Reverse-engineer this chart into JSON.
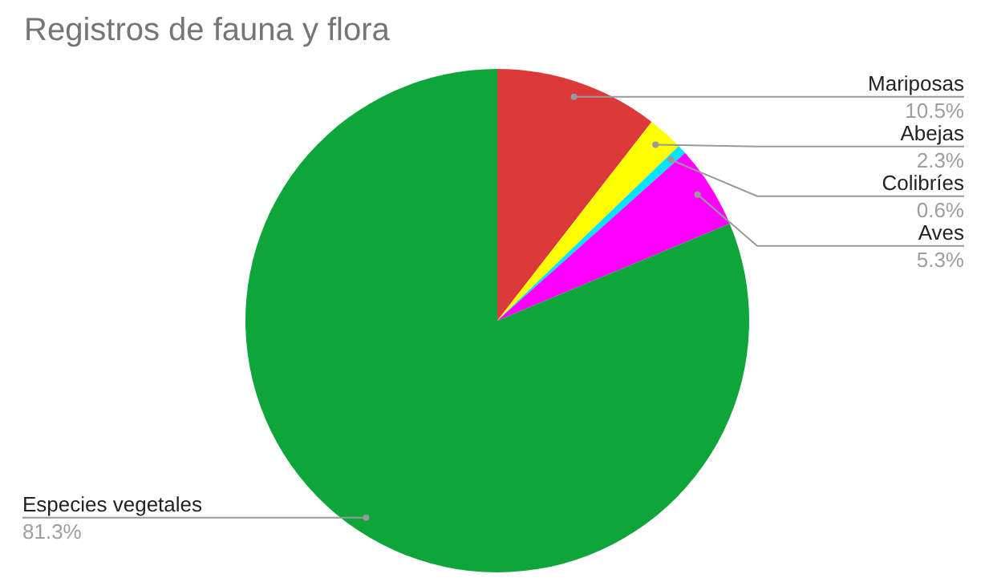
{
  "chart_data": {
    "type": "pie",
    "title": "Registros de fauna y flora",
    "categories": [
      "Mariposas",
      "Abejas",
      "Colibríes",
      "Aves",
      "Especies vegetales"
    ],
    "values": [
      10.5,
      2.3,
      0.6,
      5.3,
      81.3
    ],
    "colors": [
      "#dc3a3a",
      "#ffff00",
      "#00e5ff",
      "#ff00ff",
      "#0ea53a"
    ],
    "value_labels": [
      "10.5%",
      "2.3%",
      "0.6%",
      "5.3%",
      "81.3%"
    ]
  }
}
